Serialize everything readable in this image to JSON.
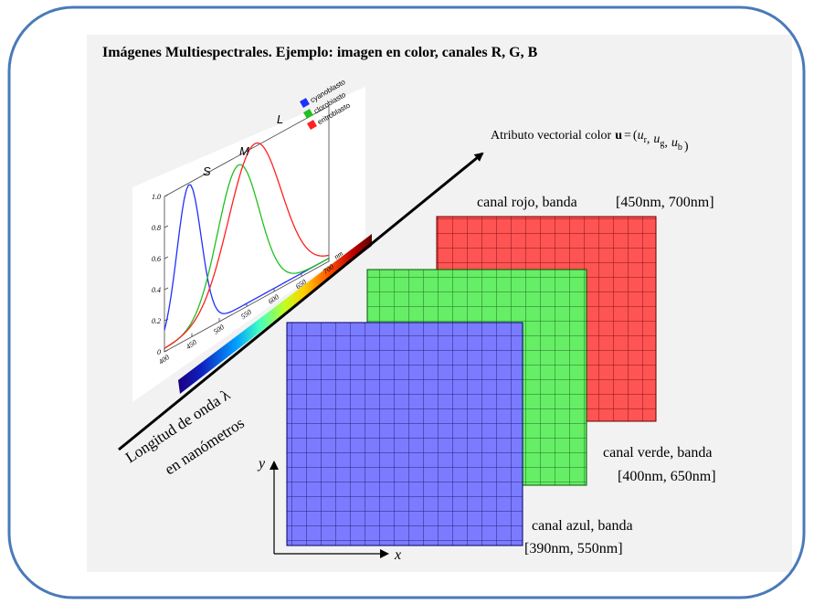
{
  "title": "Imágenes Multiespectrales. Ejemplo: imagen en color, canales R, G, B",
  "vector_label": {
    "prefix": "Atributo vectorial color",
    "symbol": "u",
    "equals": "=",
    "open": "(",
    "components": [
      {
        "base": "u",
        "sub": "r"
      },
      {
        "base": "u",
        "sub": "g"
      },
      {
        "base": "u",
        "sub": "b"
      }
    ],
    "separator": ",",
    "close": ")"
  },
  "channels": [
    {
      "name": "canal rojo, banda",
      "band": "[450nm, 700nm]"
    },
    {
      "name": "canal verde, banda",
      "band": "[400nm, 650nm]"
    },
    {
      "name": "canal azul, banda",
      "band": "[390nm, 550nm]"
    }
  ],
  "wavelength": {
    "line1": "Longitud de onda λ",
    "line2": "en nanómetros"
  },
  "axes": {
    "x": "x",
    "y": "y"
  },
  "spectrum": {
    "peaks": [
      "S",
      "M",
      "L"
    ],
    "legend": [
      "cyanoblasto",
      "clorobiasto",
      "eritroblasto"
    ],
    "yticks": [
      "0",
      "0.2",
      "0.4",
      "0.6",
      "0.8",
      "1.0"
    ],
    "xticks": [
      "400",
      "450",
      "500",
      "550",
      "600",
      "650",
      "700"
    ],
    "xunit": "nm"
  }
}
